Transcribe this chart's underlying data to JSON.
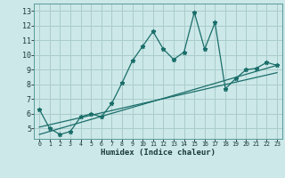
{
  "xlabel": "Humidex (Indice chaleur)",
  "bg_color": "#cce8e8",
  "grid_color": "#aacccc",
  "line_color": "#1a6e6a",
  "xlim": [
    -0.5,
    23.5
  ],
  "ylim": [
    4.3,
    13.5
  ],
  "xticks": [
    0,
    1,
    2,
    3,
    4,
    5,
    6,
    7,
    8,
    9,
    10,
    11,
    12,
    13,
    14,
    15,
    16,
    17,
    18,
    19,
    20,
    21,
    22,
    23
  ],
  "yticks": [
    5,
    6,
    7,
    8,
    9,
    10,
    11,
    12,
    13
  ],
  "main_x": [
    0,
    1,
    2,
    3,
    4,
    5,
    6,
    7,
    8,
    9,
    10,
    11,
    12,
    13,
    14,
    15,
    16,
    17,
    18,
    19,
    20,
    21,
    22,
    23
  ],
  "main_y": [
    6.3,
    5.0,
    4.6,
    4.8,
    5.8,
    6.0,
    5.8,
    6.7,
    8.1,
    9.6,
    10.6,
    11.6,
    10.4,
    9.7,
    10.2,
    12.9,
    10.4,
    12.2,
    7.7,
    8.4,
    9.0,
    9.1,
    9.5,
    9.3
  ],
  "line1_x": [
    0,
    23
  ],
  "line1_y": [
    5.1,
    8.8
  ],
  "line2_x": [
    0,
    23
  ],
  "line2_y": [
    4.6,
    9.3
  ]
}
